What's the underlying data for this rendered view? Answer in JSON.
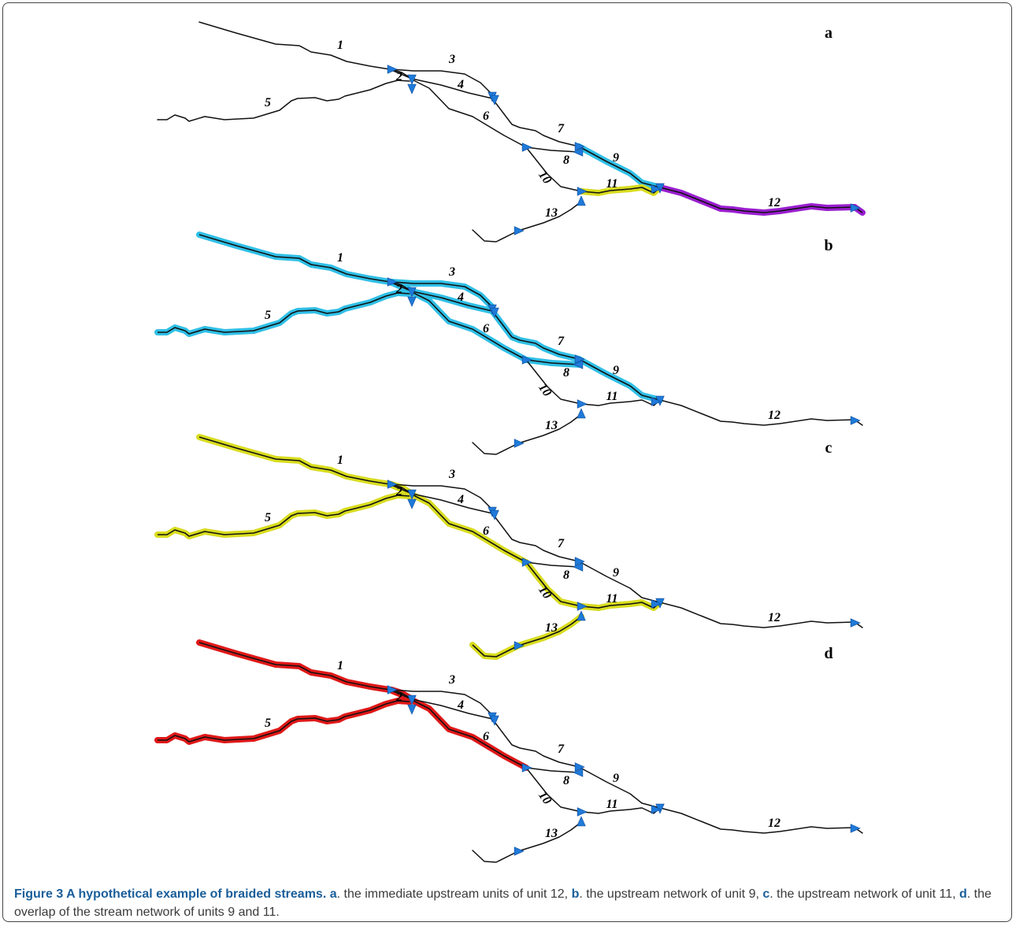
{
  "panels": [
    {
      "letter": "a",
      "highlight": [
        {
          "color": "#2fbfe6",
          "segments": [
            "9"
          ]
        },
        {
          "color": "#d8dc1e",
          "segments": [
            "11"
          ]
        },
        {
          "color": "#9a1ed0",
          "segments": [
            "12"
          ]
        }
      ]
    },
    {
      "letter": "b",
      "highlight": [
        {
          "color": "#2fbfe6",
          "segments": [
            "1",
            "2",
            "3",
            "4",
            "5",
            "6",
            "7",
            "8",
            "9"
          ]
        }
      ]
    },
    {
      "letter": "c",
      "highlight": [
        {
          "color": "#d8dc1e",
          "segments": [
            "1",
            "2",
            "5",
            "6",
            "10",
            "11",
            "13"
          ]
        }
      ]
    },
    {
      "letter": "d",
      "highlight": [
        {
          "color": "#e01818",
          "segments": [
            "1",
            "2",
            "5",
            "6"
          ]
        }
      ]
    }
  ],
  "segment_labels": [
    "1",
    "2",
    "3",
    "4",
    "5",
    "6",
    "7",
    "8",
    "9",
    "10",
    "11",
    "12",
    "13"
  ],
  "arrow_color": "#1f7ad9",
  "caption": {
    "title": "Figure 3 A hypothetical example of braided streams.",
    "parts": [
      {
        "key": "a",
        "text": ". the immediate upstream units of unit 12, "
      },
      {
        "key": "b",
        "text": ". the upstream network of unit 9, "
      },
      {
        "key": "c",
        "text": ". the upstream network of unit 11, "
      },
      {
        "key": "d",
        "text": ". the overlap of the stream network of units 9 and 11."
      }
    ]
  }
}
